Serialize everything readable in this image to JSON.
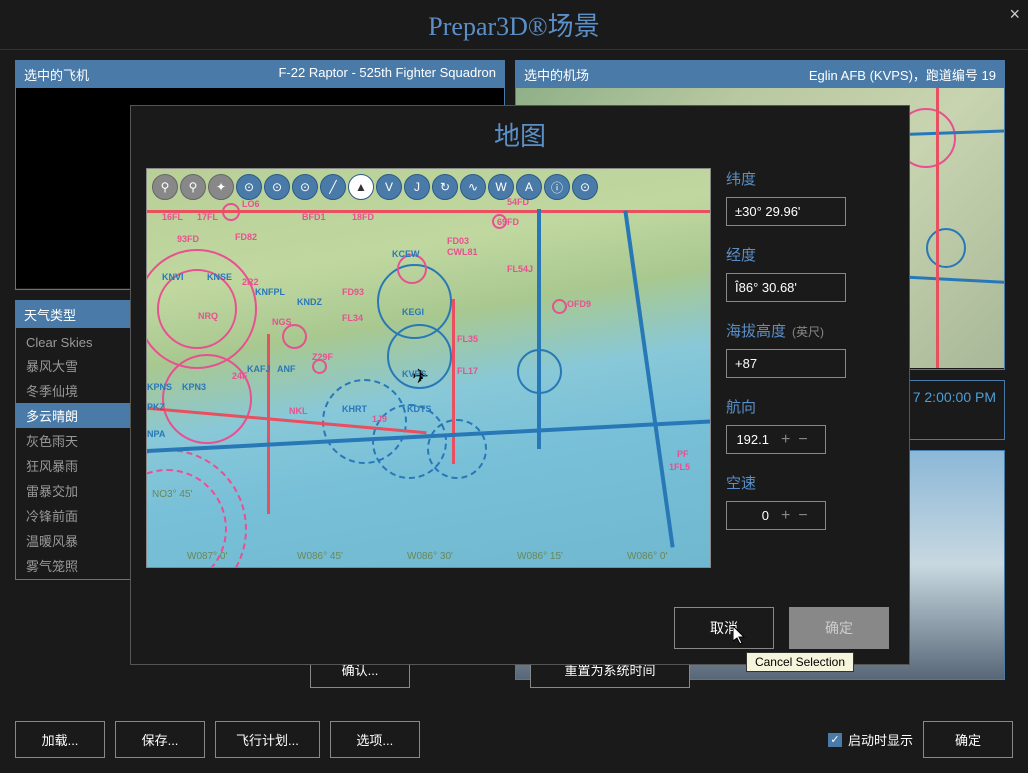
{
  "window": {
    "title": "Prepar3D®场景",
    "close": "×"
  },
  "aircraft_panel": {
    "label": "选中的飞机",
    "value": "F-22 Raptor - 525th Fighter Squadron"
  },
  "airport_panel": {
    "label": "选中的机场",
    "value": "Eglin AFB (KVPS)，跑道编号 19"
  },
  "weather_panel": {
    "label": "天气类型",
    "items": [
      "Clear Skies",
      "暴风大雪",
      "冬季仙境",
      "多云晴朗",
      "灰色雨天",
      "狂风暴雨",
      "雷暴交加",
      "冷锋前面",
      "温暖风暴",
      "雾气笼照"
    ],
    "selected_index": 3
  },
  "time_panel": {
    "value": "7 2:00:00 PM"
  },
  "buttons": {
    "load": "加载...",
    "save": "保存...",
    "flight_plan": "飞行计划...",
    "options": "选项...",
    "confirm": "确认...",
    "reset_time": "重置为系统时间",
    "ok": "确定",
    "startup_show": "启动时显示"
  },
  "map_dialog": {
    "title": "地图",
    "toolbar_icons": [
      "⚲",
      "⚲",
      "✦",
      "⊙",
      "⊙",
      "⊙",
      "╱",
      "▲",
      "V",
      "J",
      "↻",
      "∿",
      "W",
      "A",
      "ⓘ",
      "⊙"
    ],
    "controls": {
      "lat_label": "纬度",
      "lat_value": "±30° 29.96'",
      "lon_label": "经度",
      "lon_value": "Î86° 30.68'",
      "alt_label": "海拔高度",
      "alt_unit": "(英尺)",
      "alt_value": "+87",
      "heading_label": "航向",
      "heading_value": "192.1",
      "airspeed_label": "空速",
      "airspeed_value": "0"
    },
    "cancel": "取消",
    "ok": "确定",
    "tooltip": "Cancel Selection"
  },
  "map_labels": {
    "coords": [
      "W087° 0'",
      "W086° 45'",
      "W086° 30'",
      "W086° 15'",
      "W086° 0'"
    ],
    "lat_coord": "N03° 45'",
    "airports": [
      "KCEW",
      "KVPS",
      "KHRT",
      "KDTS",
      "KEGI",
      "KPNS",
      "KNPA",
      "KNDZ",
      "KNSE",
      "PKZ"
    ],
    "fixes": [
      "FD82",
      "FD93",
      "BFD1",
      "FD03",
      "54FD",
      "69FD",
      "FL17",
      "FL34",
      "FL35",
      "FL54J",
      "93FD",
      "OFD9",
      "Z29F",
      "24F",
      "1J9",
      "18FD",
      "2R2",
      "NGS",
      "NRQ",
      "16FL",
      "17FL",
      "LO6",
      "NKL",
      "CWL81",
      "ANF",
      "AFJ",
      "KPN3",
      "PF",
      "1FL5"
    ]
  },
  "colors": {
    "bg": "#1a1a1a",
    "accent": "#4a7ba8",
    "title": "#5b8fc7",
    "pink": "#e85090",
    "blue": "#2878b8",
    "terrain_land": "#b8d098",
    "terrain_water": "#78c0d8"
  }
}
